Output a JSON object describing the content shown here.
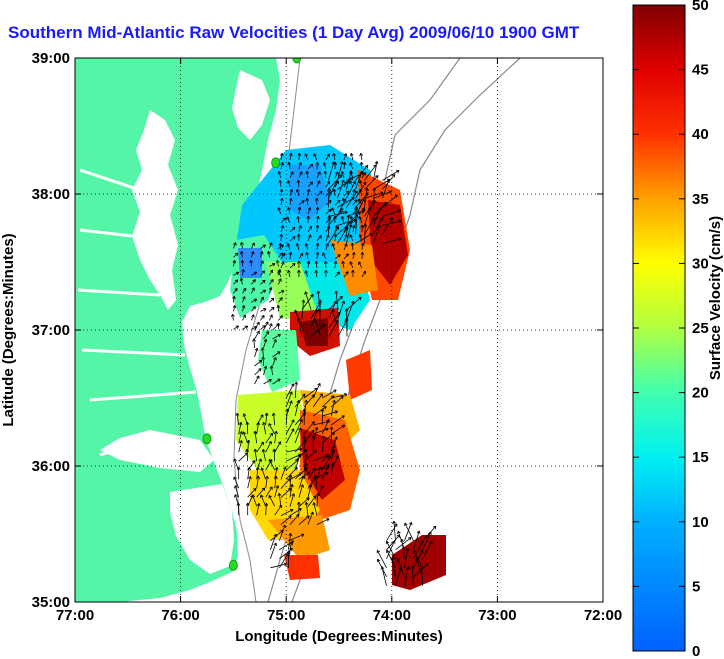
{
  "title": "Southern Mid-Atlantic Raw Velocities (1 Day Avg) 2009/06/10 1900 GMT",
  "axes": {
    "xlabel": "Longitude (Degrees:Minutes)",
    "ylabel": "Latitude (Degrees:Minutes)",
    "x_ticks": [
      "77:00",
      "76:00",
      "75:00",
      "74:00",
      "73:00",
      "72:00"
    ],
    "y_ticks": [
      "39:00",
      "38:00",
      "37:00",
      "36:00",
      "35:00"
    ],
    "x_range": [
      -77,
      -72
    ],
    "y_range": [
      35,
      39
    ],
    "grid": true
  },
  "colorbar": {
    "label": "Surface Velocity (cm/s)",
    "ticks": [
      "0",
      "5",
      "10",
      "15",
      "20",
      "25",
      "30",
      "35",
      "40",
      "45",
      "50"
    ],
    "range": [
      0,
      50
    ],
    "colormap": "jet"
  },
  "colors": {
    "land": "#55f5a8",
    "title": "#1a1aff",
    "isobath": "#888888",
    "station": "#22dd22"
  },
  "chart_data": {
    "type": "heatmap",
    "title": "Southern Mid-Atlantic Raw Velocities (1 Day Avg) 2009/06/10 1900 GMT",
    "xlabel": "Longitude (Degrees:Minutes)",
    "ylabel": "Latitude (Degrees:Minutes)",
    "xlim": [
      -77,
      -72
    ],
    "ylim": [
      35,
      39
    ],
    "value_range": [
      0,
      50
    ],
    "stations": [
      {
        "lon": -74.9,
        "lat": 39.0
      },
      {
        "lon": -75.1,
        "lat": 38.23
      },
      {
        "lon": -75.75,
        "lat": 36.2
      },
      {
        "lon": -75.5,
        "lat": 35.27
      }
    ],
    "regions": [
      {
        "lon": [
          -75.05,
          -74.2
        ],
        "lat": [
          37.35,
          38.25
        ],
        "speed": 10
      },
      {
        "lon": [
          -75.5,
          -75.0
        ],
        "lat": [
          37.0,
          37.6
        ],
        "speed": 8
      },
      {
        "lon": [
          -74.6,
          -74.05
        ],
        "lat": [
          37.6,
          38.1
        ],
        "speed": 48
      },
      {
        "lon": [
          -74.85,
          -74.4
        ],
        "lat": [
          36.9,
          37.15
        ],
        "speed": 46
      },
      {
        "lon": [
          -75.3,
          -75.05
        ],
        "lat": [
          36.6,
          37.0
        ],
        "speed": 17
      },
      {
        "lon": [
          -75.0,
          -74.5
        ],
        "lat": [
          35.85,
          36.5
        ],
        "speed": 38
      },
      {
        "lon": [
          -75.45,
          -75.05
        ],
        "lat": [
          35.6,
          36.3
        ],
        "speed": 26
      },
      {
        "lon": [
          -75.05,
          -74.7
        ],
        "lat": [
          35.55,
          35.9
        ],
        "speed": 30
      },
      {
        "lon": [
          -75.15,
          -74.9
        ],
        "lat": [
          35.25,
          35.45
        ],
        "speed": 40
      },
      {
        "lon": [
          -74.05,
          -73.7
        ],
        "lat": [
          35.1,
          35.45
        ],
        "speed": 49
      }
    ]
  }
}
